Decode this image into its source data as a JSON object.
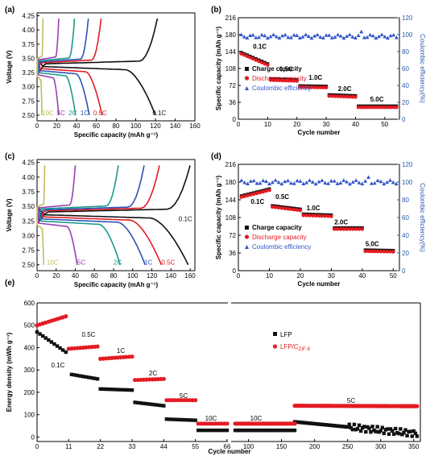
{
  "chart_data": [
    {
      "id": "a",
      "panel_label": "(a)",
      "type": "line",
      "xlabel": "Specific capacity (mAh g⁻¹)",
      "ylabel": "Voltage (V)",
      "xlim": [
        0,
        160
      ],
      "ylim": [
        2.4,
        4.3
      ],
      "xticks": [
        "0",
        "20",
        "40",
        "60",
        "80",
        "100",
        "120",
        "140",
        "160"
      ],
      "yticks": [
        "2.50",
        "2.75",
        "3.00",
        "3.25",
        "3.50",
        "3.75",
        "4.00",
        "4.25"
      ],
      "series": [
        {
          "name": "0.1C",
          "color": "#111111",
          "charge_max": 122,
          "discharge_max": 120
        },
        {
          "name": "0.5C",
          "color": "#e31b23",
          "charge_max": 65,
          "discharge_max": 66
        },
        {
          "name": "1C",
          "color": "#2b54b6",
          "charge_max": 52,
          "discharge_max": 53
        },
        {
          "name": "2C",
          "color": "#1a9a8a",
          "charge_max": 38,
          "discharge_max": 39
        },
        {
          "name": "5C",
          "color": "#9b3fb5",
          "charge_max": 22,
          "discharge_max": 22
        },
        {
          "name": "10C",
          "color": "#c3bc5c",
          "charge_max": 6,
          "discharge_max": 5
        }
      ]
    },
    {
      "id": "b",
      "panel_label": "(b)",
      "type": "scatter",
      "xlabel": "Cycle number",
      "ylabel": "Specific capacity (mAh g⁻¹)",
      "y2label": "Coulombic efficiency(%)",
      "xlim": [
        0,
        55
      ],
      "ylim": [
        0,
        216
      ],
      "y2lim": [
        0,
        120
      ],
      "xticks": [
        "0",
        "10",
        "20",
        "30",
        "40",
        "50"
      ],
      "yticks": [
        "0",
        "36",
        "72",
        "108",
        "144",
        "180",
        "216"
      ],
      "y2ticks": [
        "0",
        "20",
        "40",
        "60",
        "80",
        "100",
        "120"
      ],
      "legend": [
        "Charge capacity",
        "Discharge capacity",
        "Coulombic efficiency"
      ],
      "rate_labels": [
        "0.1C",
        "0.5C",
        "1.0C",
        "2.0C",
        "5.0C"
      ],
      "segments": [
        {
          "x_start": 1,
          "x_end": 10,
          "y_start": 142,
          "y_end": 118
        },
        {
          "x_start": 11,
          "x_end": 20,
          "y_start": 86,
          "y_end": 84
        },
        {
          "x_start": 21,
          "x_end": 30,
          "y_start": 71,
          "y_end": 70
        },
        {
          "x_start": 31,
          "x_end": 40,
          "y_start": 52,
          "y_end": 50
        },
        {
          "x_start": 41,
          "x_end": 54,
          "y_start": 28,
          "y_end": 28
        }
      ],
      "efficiency": 98
    },
    {
      "id": "c",
      "panel_label": "(c)",
      "type": "line",
      "xlabel": "Specific capacity (mAh g⁻¹)",
      "ylabel": "Voltage (V)",
      "xlim": [
        0,
        165
      ],
      "ylim": [
        2.4,
        4.3
      ],
      "xticks": [
        "0",
        "20",
        "40",
        "60",
        "80",
        "100",
        "120",
        "140",
        "160"
      ],
      "yticks": [
        "2.50",
        "2.75",
        "3.00",
        "3.25",
        "3.50",
        "3.75",
        "4.00",
        "4.25"
      ],
      "series": [
        {
          "name": "0.1C",
          "color": "#111111",
          "charge_max": 160,
          "discharge_max": 158
        },
        {
          "name": "0.5C",
          "color": "#e31b23",
          "charge_max": 128,
          "discharge_max": 130
        },
        {
          "name": "1C",
          "color": "#2b54b6",
          "charge_max": 112,
          "discharge_max": 113
        },
        {
          "name": "2C",
          "color": "#1a9a8a",
          "charge_max": 85,
          "discharge_max": 87
        },
        {
          "name": "5C",
          "color": "#9b3fb5",
          "charge_max": 40,
          "discharge_max": 42
        },
        {
          "name": "10C",
          "color": "#c3bc5c",
          "charge_max": 8,
          "discharge_max": 7
        }
      ]
    },
    {
      "id": "d",
      "panel_label": "(d)",
      "type": "scatter",
      "xlabel": "Cycle number",
      "ylabel": "Specific capacity (mAh g⁻¹)",
      "y2label": "Coulombic efficiency(%)",
      "xlim": [
        0,
        52
      ],
      "ylim": [
        0,
        216
      ],
      "y2lim": [
        0,
        120
      ],
      "xticks": [
        "0",
        "10",
        "20",
        "30",
        "40",
        "50"
      ],
      "yticks": [
        "0",
        "36",
        "72",
        "108",
        "144",
        "180",
        "216"
      ],
      "y2ticks": [
        "0",
        "20",
        "40",
        "60",
        "80",
        "100",
        "120"
      ],
      "legend": [
        "Charge capacity",
        "Discharge capacity",
        "Coulombic efficiency"
      ],
      "rate_labels": [
        "0.1C",
        "0.5C",
        "1.0C",
        "2.0C",
        "5.0C"
      ],
      "segments": [
        {
          "x_start": 1,
          "x_end": 10,
          "y_start": 152,
          "y_end": 166
        },
        {
          "x_start": 11,
          "x_end": 20,
          "y_start": 132,
          "y_end": 125
        },
        {
          "x_start": 21,
          "x_end": 30,
          "y_start": 115,
          "y_end": 113
        },
        {
          "x_start": 31,
          "x_end": 40,
          "y_start": 87,
          "y_end": 87
        },
        {
          "x_start": 41,
          "x_end": 50,
          "y_start": 42,
          "y_end": 41
        }
      ],
      "efficiency": 100
    },
    {
      "id": "e",
      "panel_label": "(e)",
      "type": "scatter",
      "xlabel": "Cycle number",
      "ylabel": "Energy density (mWh g⁻¹)",
      "xticks_left": [
        "0",
        "11",
        "22",
        "33",
        "44",
        "55",
        "66"
      ],
      "xticks_right": [
        "100",
        "150",
        "200",
        "250",
        "300",
        "350"
      ],
      "yticks": [
        "0",
        "100",
        "200",
        "300",
        "400",
        "500",
        "600"
      ],
      "xlim_left": [
        0,
        66
      ],
      "xlim_right": [
        75,
        360
      ],
      "ylim": [
        -20,
        600
      ],
      "legend": [
        "LFP",
        "LFP/C",
        "ZIF-8"
      ],
      "rate_labels": [
        "0.1C",
        "0.5C",
        "1C",
        "2C",
        "5C",
        "10C",
        "10C",
        "5C"
      ],
      "lfp_segments": [
        {
          "x_start": 0,
          "x_end": 10,
          "y_start": 470,
          "y_end": 380
        },
        {
          "x_start": 12,
          "x_end": 21,
          "y_start": 280,
          "y_end": 260
        },
        {
          "x_start": 22,
          "x_end": 33,
          "y_start": 215,
          "y_end": 210
        },
        {
          "x_start": 34,
          "x_end": 44,
          "y_start": 155,
          "y_end": 140
        },
        {
          "x_start": 45,
          "x_end": 55,
          "y_start": 80,
          "y_end": 75
        },
        {
          "x_start": 56,
          "x_end": 66,
          "y_start": 30,
          "y_end": 30
        },
        {
          "x_start": 80,
          "x_end": 170,
          "y_start": 30,
          "y_end": 30
        },
        {
          "x_start": 170,
          "x_end": 355,
          "y_start": 68,
          "y_end": 15
        }
      ],
      "zif_segments": [
        {
          "x_start": 0,
          "x_end": 10,
          "y_start": 500,
          "y_end": 540
        },
        {
          "x_start": 11,
          "x_end": 21,
          "y_start": 395,
          "y_end": 405
        },
        {
          "x_start": 22,
          "x_end": 33,
          "y_start": 350,
          "y_end": 360
        },
        {
          "x_start": 34,
          "x_end": 44,
          "y_start": 255,
          "y_end": 260
        },
        {
          "x_start": 45,
          "x_end": 55,
          "y_start": 165,
          "y_end": 165
        },
        {
          "x_start": 56,
          "x_end": 66,
          "y_start": 60,
          "y_end": 60
        },
        {
          "x_start": 80,
          "x_end": 170,
          "y_start": 60,
          "y_end": 60
        },
        {
          "x_start": 170,
          "x_end": 355,
          "y_start": 140,
          "y_end": 138
        }
      ]
    }
  ],
  "colors": {
    "charge": "#111111",
    "discharge": "#e31b23",
    "efficiency": "#3456c8",
    "axis_right": "#2a5aa8"
  }
}
